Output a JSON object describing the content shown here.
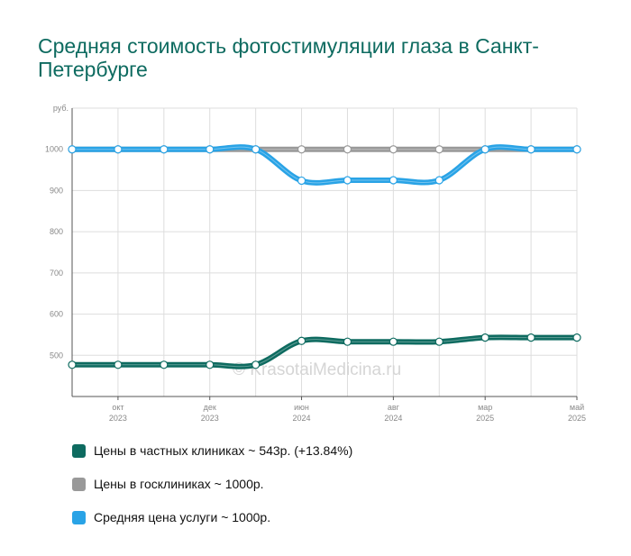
{
  "title": "Средняя стоимость фотостимуляции глаза в Санкт-Петербурге",
  "watermark": "© KrasotaiMedicina.ru",
  "colors": {
    "private": "#0e6b60",
    "public": "#999999",
    "average": "#29a3e6",
    "title": "#0e6b60"
  },
  "legend": [
    {
      "label": "Цены в частных клиниках ~ 543р. (+13.84%)",
      "color": "#0e6b60"
    },
    {
      "label": "Цены в госклиниках ~ 1000р.",
      "color": "#999999"
    },
    {
      "label": "Средняя цена услуги ~ 1000р.",
      "color": "#29a3e6"
    }
  ],
  "chart_data": {
    "type": "line",
    "yunit": "руб.",
    "ylim": [
      400,
      1100
    ],
    "yticks": [
      500,
      600,
      700,
      800,
      900,
      1000
    ],
    "grid": true,
    "x_tick_labels": [
      {
        "month": "окт",
        "year": "2023",
        "index": 1
      },
      {
        "month": "дек",
        "year": "2023",
        "index": 3
      },
      {
        "month": "июн",
        "year": "2024",
        "index": 5
      },
      {
        "month": "авг",
        "year": "2024",
        "index": 7
      },
      {
        "month": "мар",
        "year": "2025",
        "index": 9
      },
      {
        "month": "май",
        "year": "2025",
        "index": 11
      }
    ],
    "series": [
      {
        "key": "private",
        "values": [
          477,
          477,
          477,
          477,
          477,
          535,
          533,
          533,
          533,
          543,
          543,
          543
        ]
      },
      {
        "key": "public",
        "values": [
          1000,
          1000,
          1000,
          1000,
          1000,
          1000,
          1000,
          1000,
          1000,
          1000,
          1000,
          1000
        ]
      },
      {
        "key": "average",
        "values": [
          1000,
          1000,
          1000,
          1000,
          1000,
          924,
          925,
          925,
          925,
          1000,
          1000,
          1000
        ]
      }
    ]
  }
}
